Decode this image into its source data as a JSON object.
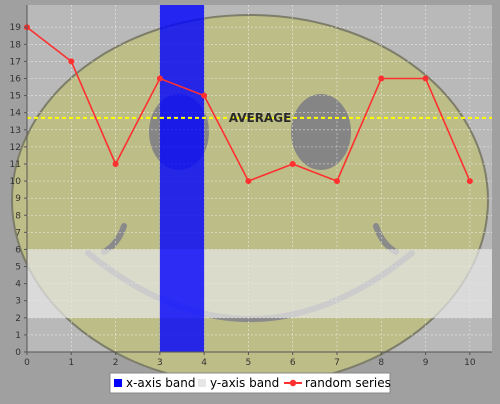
{
  "chart_data": {
    "type": "line",
    "title": "",
    "xlabel": "",
    "ylabel": "",
    "xlim": [
      0,
      10.5
    ],
    "ylim": [
      0,
      20
    ],
    "x_ticks": [
      0,
      1,
      2,
      3,
      4,
      5,
      6,
      7,
      8,
      9,
      10
    ],
    "y_ticks": [
      0,
      1,
      2,
      3,
      4,
      5,
      6,
      7,
      8,
      9,
      10,
      11,
      12,
      13,
      14,
      15,
      16,
      17,
      18,
      19
    ],
    "grid": true,
    "series": [
      {
        "name": "random series",
        "x": [
          0,
          1,
          2,
          3,
          4,
          5,
          6,
          7,
          8,
          9,
          10
        ],
        "values": [
          19,
          17,
          11,
          16,
          15,
          10,
          11,
          10,
          16,
          16,
          10
        ],
        "color": "#ff3030"
      }
    ],
    "x_band": {
      "name": "x-axis band",
      "range": [
        3,
        4
      ],
      "color": "#0000ff"
    },
    "y_band": {
      "name": "y-axis band",
      "range": [
        2,
        6
      ],
      "color": "#e6e6e6"
    },
    "average_line": {
      "label": "AVERAGE",
      "value": 13.7,
      "color": "#ffff00"
    },
    "legend": {
      "position": "bottom",
      "items": [
        "x-axis band",
        "y-axis band",
        "random series"
      ]
    }
  }
}
